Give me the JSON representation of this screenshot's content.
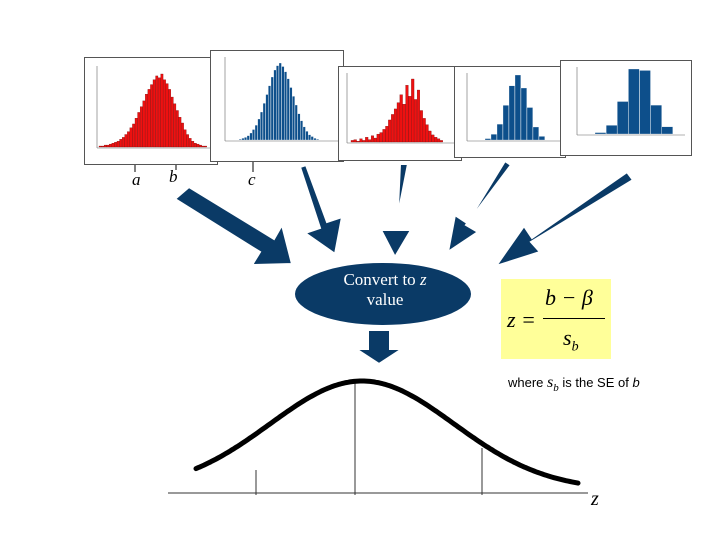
{
  "colors": {
    "red_bars": "#ee1111",
    "blue_bars": "#0d4f8b",
    "arrow": "#0a3a66",
    "ellipse": "#0a3a66",
    "formula_bg": "#ffff99",
    "curve": "#000000"
  },
  "labels": {
    "a": "a",
    "b": "b",
    "c": "c"
  },
  "ellipse": {
    "line1_prefix": "Convert to ",
    "line1_var": "z",
    "line2": "value"
  },
  "formula": {
    "lhs": "z =",
    "numerator": "b − β",
    "denominator_base": "s",
    "denominator_sub": "b"
  },
  "where": {
    "prefix": "where ",
    "sb_base": "s",
    "sb_sub": "b",
    "middle": " is the SE of ",
    "b": "b"
  },
  "axis_label": "z",
  "histograms": [
    {
      "color": "red",
      "values": [
        1,
        1,
        2,
        2,
        3,
        4,
        5,
        6,
        8,
        10,
        13,
        16,
        20,
        24,
        30,
        36,
        42,
        48,
        55,
        60,
        65,
        70,
        74,
        72,
        76,
        70,
        66,
        60,
        52,
        45,
        38,
        31,
        25,
        18,
        13,
        9,
        6,
        4,
        3,
        2,
        1,
        1
      ]
    },
    {
      "color": "blue",
      "values": [
        1,
        2,
        3,
        5,
        8,
        12,
        17,
        24,
        32,
        42,
        52,
        62,
        72,
        80,
        85,
        88,
        84,
        78,
        70,
        60,
        50,
        40,
        30,
        22,
        15,
        10,
        6,
        4,
        2,
        1
      ]
    },
    {
      "color": "red",
      "values": [
        2,
        3,
        1,
        4,
        2,
        6,
        3,
        8,
        5,
        10,
        12,
        16,
        20,
        28,
        35,
        42,
        50,
        60,
        48,
        72,
        58,
        80,
        54,
        66,
        40,
        30,
        22,
        14,
        9,
        6,
        4,
        2
      ]
    },
    {
      "color": "blue",
      "values": [
        2,
        8,
        22,
        48,
        75,
        90,
        72,
        45,
        18,
        5
      ]
    },
    {
      "color": "blue",
      "values": [
        2,
        12,
        45,
        90,
        88,
        40,
        10
      ]
    }
  ]
}
